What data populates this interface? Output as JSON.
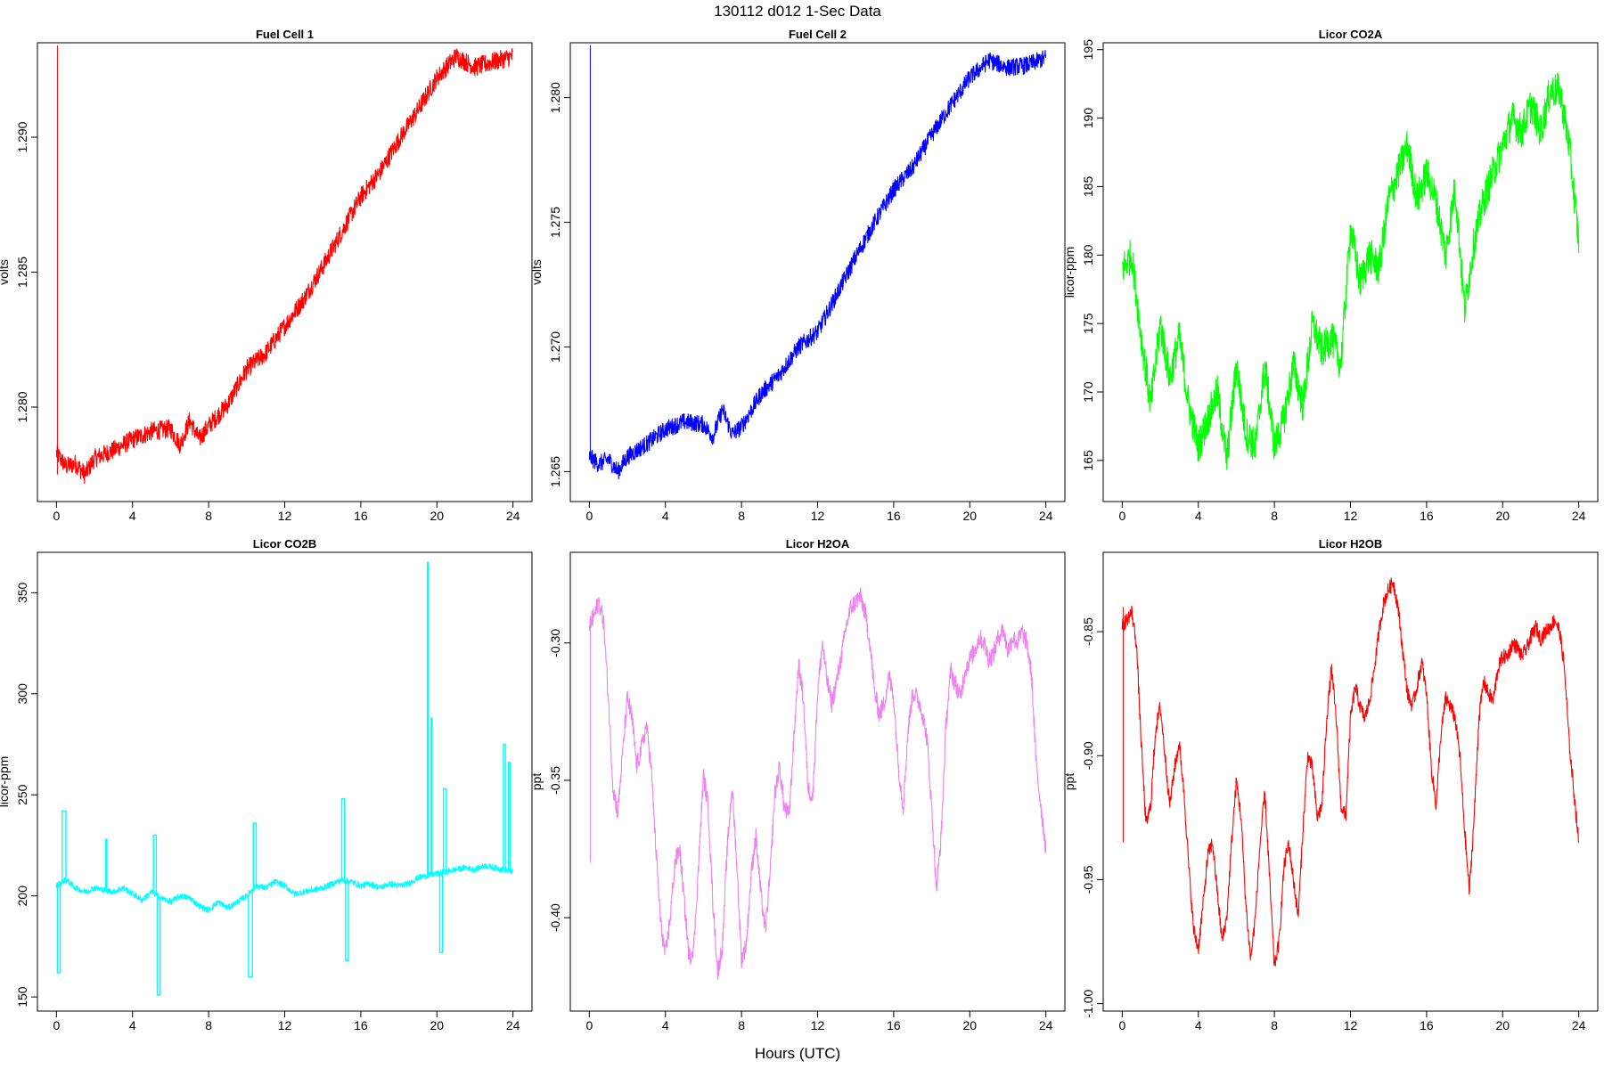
{
  "figure": {
    "title": "130112   d012   1-Sec Data",
    "xlabel": "Hours (UTC)"
  },
  "chart_data": [
    {
      "type": "line",
      "title": "Fuel Cell 1",
      "xlabel": "",
      "ylabel": "volts",
      "color": "#ff0000",
      "xlim": [
        -1,
        25
      ],
      "ylim": [
        1.2765,
        1.2935
      ],
      "xticks": [
        0,
        4,
        8,
        12,
        16,
        20,
        24
      ],
      "xtick_labels": [
        "0",
        "4",
        "8",
        "12",
        "16",
        "20",
        "24"
      ],
      "yticks": [
        1.28,
        1.285,
        1.29
      ],
      "ytick_labels": [
        "1.280",
        "1.285",
        "1.290"
      ],
      "band": 0.0007,
      "spike": {
        "x": 0.05,
        "y_low": 1.2775,
        "y_high": 1.2934
      },
      "series": [
        {
          "x": [
            0,
            0.5,
            1,
            1.5,
            2,
            3,
            4,
            5,
            6,
            6.5,
            7,
            7.5,
            8,
            9,
            10,
            11,
            12,
            13,
            14,
            15,
            16,
            17,
            18,
            19,
            20,
            21,
            22,
            23,
            24
          ],
          "y": [
            1.2783,
            1.2778,
            1.2779,
            1.2775,
            1.2781,
            1.2784,
            1.2788,
            1.2791,
            1.2792,
            1.2786,
            1.2795,
            1.2788,
            1.2793,
            1.2801,
            1.2814,
            1.282,
            1.283,
            1.284,
            1.2852,
            1.2865,
            1.2878,
            1.2887,
            1.2899,
            1.291,
            1.2922,
            1.293,
            1.2926,
            1.2928,
            1.293
          ]
        }
      ]
    },
    {
      "type": "line",
      "title": "Fuel Cell 2",
      "xlabel": "",
      "ylabel": "volts",
      "color": "#0000ff",
      "xlim": [
        -1,
        25
      ],
      "ylim": [
        1.2638,
        1.2822
      ],
      "xticks": [
        0,
        4,
        8,
        12,
        16,
        20,
        24
      ],
      "xtick_labels": [
        "0",
        "4",
        "8",
        "12",
        "16",
        "20",
        "24"
      ],
      "yticks": [
        1.265,
        1.27,
        1.275,
        1.28
      ],
      "ytick_labels": [
        "1.265",
        "1.270",
        "1.275",
        "1.280"
      ],
      "band": 0.0007,
      "spike": {
        "x": 0.05,
        "y_low": 1.2655,
        "y_high": 1.2821
      },
      "series": [
        {
          "x": [
            0,
            0.5,
            1,
            1.5,
            2,
            3,
            4,
            5,
            6,
            6.5,
            7,
            7.5,
            8,
            9,
            10,
            11,
            12,
            13,
            14,
            15,
            16,
            17,
            18,
            19,
            20,
            21,
            22,
            23,
            24
          ],
          "y": [
            1.2656,
            1.2653,
            1.2655,
            1.265,
            1.2656,
            1.2661,
            1.2667,
            1.267,
            1.2669,
            1.2664,
            1.2675,
            1.2665,
            1.2668,
            1.2681,
            1.2689,
            1.27,
            1.2706,
            1.2721,
            1.2736,
            1.275,
            1.2763,
            1.2772,
            1.2785,
            1.2797,
            1.2808,
            1.2815,
            1.2812,
            1.2813,
            1.2816
          ]
        }
      ]
    },
    {
      "type": "line",
      "title": "Licor CO2A",
      "xlabel": "",
      "ylabel": "licor-ppm",
      "color": "#00ff00",
      "xlim": [
        -1,
        25
      ],
      "ylim": [
        162,
        195.5
      ],
      "xticks": [
        0,
        4,
        8,
        12,
        16,
        20,
        24
      ],
      "xtick_labels": [
        "0",
        "4",
        "8",
        "12",
        "16",
        "20",
        "24"
      ],
      "yticks": [
        165,
        170,
        175,
        180,
        185,
        190,
        195
      ],
      "ytick_labels": [
        "165",
        "170",
        "175",
        "180",
        "185",
        "190",
        "195"
      ],
      "band": 2.6,
      "series": [
        {
          "x": [
            0,
            0.5,
            1,
            1.5,
            2,
            2.5,
            3,
            3.5,
            4,
            4.5,
            5,
            5.5,
            6,
            6.5,
            7,
            7.5,
            8,
            8.5,
            9,
            9.5,
            10,
            10.5,
            11,
            11.5,
            12,
            12.5,
            13,
            13.5,
            14,
            14.5,
            15,
            15.5,
            16,
            16.5,
            17,
            17.5,
            18,
            18.5,
            19,
            19.5,
            20,
            20.5,
            21,
            21.5,
            22,
            22.5,
            23,
            23.5,
            24
          ],
          "y": [
            179,
            180,
            174,
            169,
            175,
            171,
            174,
            169,
            166,
            168,
            170,
            165,
            172,
            167,
            166,
            172,
            166,
            168,
            172,
            169,
            175,
            173,
            174,
            172,
            182,
            178,
            180,
            179,
            184,
            186,
            188,
            184,
            186,
            184,
            180,
            185,
            176,
            181,
            184,
            186,
            188,
            190,
            189,
            191,
            189,
            192,
            192,
            188,
            181
          ]
        }
      ]
    },
    {
      "type": "line",
      "title": "Licor CO2B",
      "xlabel": "",
      "ylabel": "licor-ppm",
      "color": "#00ffff",
      "xlim": [
        -1,
        25
      ],
      "ylim": [
        143,
        370
      ],
      "xticks": [
        0,
        4,
        8,
        12,
        16,
        20,
        24
      ],
      "xtick_labels": [
        "0",
        "4",
        "8",
        "12",
        "16",
        "20",
        "24"
      ],
      "yticks": [
        150,
        200,
        250,
        300,
        350
      ],
      "ytick_labels": [
        "150",
        "200",
        "250",
        "300",
        "350"
      ],
      "band": 3,
      "series": [
        {
          "x": [
            0,
            0.5,
            1,
            1.5,
            2,
            2.5,
            3,
            3.5,
            4,
            4.5,
            5,
            5.5,
            6,
            6.5,
            7,
            7.5,
            8,
            8.5,
            9,
            9.5,
            10,
            10.5,
            11,
            11.5,
            12,
            12.5,
            13,
            13.5,
            14,
            14.5,
            15,
            15.5,
            16,
            16.5,
            17,
            17.5,
            18,
            18.5,
            19,
            19.5,
            20,
            20.5,
            21,
            21.5,
            22,
            22.5,
            23,
            23.5,
            24
          ],
          "y": [
            205,
            208,
            204,
            202,
            204,
            203,
            202,
            204,
            201,
            198,
            202,
            199,
            197,
            200,
            199,
            195,
            193,
            197,
            194,
            197,
            200,
            205,
            204,
            207,
            205,
            201,
            202,
            203,
            204,
            206,
            208,
            207,
            205,
            206,
            204,
            206,
            205,
            206,
            209,
            210,
            211,
            212,
            213,
            214,
            213,
            215,
            214,
            213,
            212
          ]
        }
      ],
      "spikes": [
        {
          "x0": 0.05,
          "x1": 0.2,
          "y": 162
        },
        {
          "x0": 0.3,
          "x1": 0.5,
          "y": 242
        },
        {
          "x0": 2.6,
          "x1": 2.65,
          "y": 228
        },
        {
          "x0": 5.1,
          "x1": 5.25,
          "y": 230
        },
        {
          "x0": 5.3,
          "x1": 5.45,
          "y": 151
        },
        {
          "x0": 10.1,
          "x1": 10.3,
          "y": 160
        },
        {
          "x0": 10.35,
          "x1": 10.5,
          "y": 236
        },
        {
          "x0": 15.0,
          "x1": 15.15,
          "y": 248
        },
        {
          "x0": 15.2,
          "x1": 15.35,
          "y": 168
        },
        {
          "x0": 19.5,
          "x1": 19.55,
          "y": 365
        },
        {
          "x0": 19.7,
          "x1": 19.75,
          "y": 288
        },
        {
          "x0": 20.15,
          "x1": 20.3,
          "y": 172
        },
        {
          "x0": 20.35,
          "x1": 20.5,
          "y": 253
        },
        {
          "x0": 23.5,
          "x1": 23.6,
          "y": 275
        },
        {
          "x0": 23.75,
          "x1": 23.85,
          "y": 266
        }
      ]
    },
    {
      "type": "line",
      "title": "Licor H2OA",
      "xlabel": "",
      "ylabel": "ppt",
      "color": "#ee82ee",
      "xlim": [
        -1,
        25
      ],
      "ylim": [
        -0.434,
        -0.267
      ],
      "xticks": [
        0,
        4,
        8,
        12,
        16,
        20,
        24
      ],
      "xtick_labels": [
        "0",
        "4",
        "8",
        "12",
        "16",
        "20",
        "24"
      ],
      "yticks": [
        -0.4,
        -0.35,
        -0.3
      ],
      "ytick_labels": [
        "-0.40",
        "-0.35",
        "-0.30"
      ],
      "band": 0.007,
      "spike": {
        "x": 0.05,
        "y_low": -0.38,
        "y_high": -0.29
      },
      "series": [
        {
          "x": [
            0,
            0.25,
            0.5,
            0.75,
            1,
            1.25,
            1.5,
            1.75,
            2,
            2.25,
            2.5,
            2.75,
            3,
            3.25,
            3.5,
            3.75,
            4,
            4.25,
            4.5,
            4.75,
            5,
            5.25,
            5.5,
            5.75,
            6,
            6.25,
            6.5,
            6.75,
            7,
            7.25,
            7.5,
            7.75,
            8,
            8.25,
            8.5,
            8.75,
            9,
            9.25,
            9.5,
            9.75,
            10,
            10.25,
            10.5,
            10.75,
            11,
            11.25,
            11.5,
            11.75,
            12,
            12.25,
            12.5,
            12.75,
            13,
            13.25,
            13.5,
            13.75,
            14,
            14.25,
            14.5,
            14.75,
            15,
            15.25,
            15.5,
            15.75,
            16,
            16.25,
            16.5,
            16.75,
            17,
            17.25,
            17.5,
            17.75,
            18,
            18.25,
            18.5,
            18.75,
            19,
            19.25,
            19.5,
            19.75,
            20,
            20.25,
            20.5,
            20.75,
            21,
            21.25,
            21.5,
            21.75,
            22,
            22.25,
            22.5,
            22.75,
            23,
            23.25,
            23.5,
            23.75,
            24
          ],
          "y": [
            -0.294,
            -0.29,
            -0.285,
            -0.292,
            -0.32,
            -0.353,
            -0.362,
            -0.34,
            -0.32,
            -0.328,
            -0.345,
            -0.338,
            -0.33,
            -0.345,
            -0.375,
            -0.402,
            -0.414,
            -0.4,
            -0.38,
            -0.375,
            -0.395,
            -0.415,
            -0.41,
            -0.38,
            -0.348,
            -0.36,
            -0.395,
            -0.42,
            -0.41,
            -0.375,
            -0.352,
            -0.38,
            -0.415,
            -0.41,
            -0.385,
            -0.37,
            -0.39,
            -0.405,
            -0.385,
            -0.355,
            -0.345,
            -0.36,
            -0.363,
            -0.335,
            -0.308,
            -0.32,
            -0.353,
            -0.356,
            -0.318,
            -0.3,
            -0.314,
            -0.322,
            -0.314,
            -0.305,
            -0.294,
            -0.287,
            -0.285,
            -0.283,
            -0.289,
            -0.3,
            -0.318,
            -0.326,
            -0.322,
            -0.312,
            -0.32,
            -0.345,
            -0.36,
            -0.332,
            -0.318,
            -0.32,
            -0.325,
            -0.335,
            -0.36,
            -0.39,
            -0.37,
            -0.33,
            -0.31,
            -0.315,
            -0.32,
            -0.31,
            -0.306,
            -0.303,
            -0.298,
            -0.3,
            -0.306,
            -0.304,
            -0.298,
            -0.295,
            -0.303,
            -0.298,
            -0.3,
            -0.296,
            -0.3,
            -0.312,
            -0.345,
            -0.36,
            -0.375
          ]
        }
      ]
    },
    {
      "type": "line",
      "title": "Licor H2OB",
      "xlabel": "",
      "ylabel": "ppt",
      "color": "#ff0000",
      "xlim": [
        -1,
        25
      ],
      "ylim": [
        -1.003,
        -0.818
      ],
      "xticks": [
        0,
        4,
        8,
        12,
        16,
        20,
        24
      ],
      "xtick_labels": [
        "0",
        "4",
        "8",
        "12",
        "16",
        "20",
        "24"
      ],
      "yticks": [
        -1.0,
        -0.95,
        -0.9,
        -0.85
      ],
      "ytick_labels": [
        "-1.00",
        "-0.95",
        "-0.90",
        "-0.85"
      ],
      "band": 0.006,
      "spike": {
        "x": 0.05,
        "y_low": -0.935,
        "y_high": -0.84
      },
      "series": [
        {
          "x": [
            0,
            0.25,
            0.5,
            0.75,
            1,
            1.25,
            1.5,
            1.75,
            2,
            2.25,
            2.5,
            2.75,
            3,
            3.25,
            3.5,
            3.75,
            4,
            4.25,
            4.5,
            4.75,
            5,
            5.25,
            5.5,
            5.75,
            6,
            6.25,
            6.5,
            6.75,
            7,
            7.25,
            7.5,
            7.75,
            8,
            8.25,
            8.5,
            8.75,
            9,
            9.25,
            9.5,
            9.75,
            10,
            10.25,
            10.5,
            10.75,
            11,
            11.25,
            11.5,
            11.75,
            12,
            12.25,
            12.5,
            12.75,
            13,
            13.25,
            13.5,
            13.75,
            14,
            14.25,
            14.5,
            14.75,
            15,
            15.25,
            15.5,
            15.75,
            16,
            16.25,
            16.5,
            16.75,
            17,
            17.25,
            17.5,
            17.75,
            18,
            18.25,
            18.5,
            18.75,
            19,
            19.25,
            19.5,
            19.75,
            20,
            20.25,
            20.5,
            20.75,
            21,
            21.25,
            21.5,
            21.75,
            22,
            22.25,
            22.5,
            22.75,
            23,
            23.25,
            23.5,
            23.75,
            24
          ],
          "y": [
            -0.848,
            -0.845,
            -0.842,
            -0.855,
            -0.895,
            -0.928,
            -0.92,
            -0.89,
            -0.88,
            -0.9,
            -0.92,
            -0.905,
            -0.895,
            -0.915,
            -0.945,
            -0.97,
            -0.978,
            -0.96,
            -0.94,
            -0.935,
            -0.955,
            -0.975,
            -0.965,
            -0.935,
            -0.91,
            -0.925,
            -0.96,
            -0.982,
            -0.965,
            -0.935,
            -0.915,
            -0.95,
            -0.985,
            -0.975,
            -0.945,
            -0.935,
            -0.95,
            -0.965,
            -0.93,
            -0.9,
            -0.905,
            -0.925,
            -0.92,
            -0.885,
            -0.865,
            -0.885,
            -0.92,
            -0.925,
            -0.885,
            -0.872,
            -0.88,
            -0.885,
            -0.878,
            -0.865,
            -0.85,
            -0.838,
            -0.833,
            -0.83,
            -0.84,
            -0.858,
            -0.875,
            -0.88,
            -0.872,
            -0.862,
            -0.875,
            -0.905,
            -0.92,
            -0.892,
            -0.877,
            -0.88,
            -0.885,
            -0.9,
            -0.93,
            -0.955,
            -0.925,
            -0.885,
            -0.87,
            -0.875,
            -0.878,
            -0.865,
            -0.86,
            -0.86,
            -0.855,
            -0.856,
            -0.86,
            -0.857,
            -0.852,
            -0.848,
            -0.853,
            -0.85,
            -0.848,
            -0.845,
            -0.85,
            -0.865,
            -0.895,
            -0.915,
            -0.935
          ]
        }
      ]
    }
  ]
}
